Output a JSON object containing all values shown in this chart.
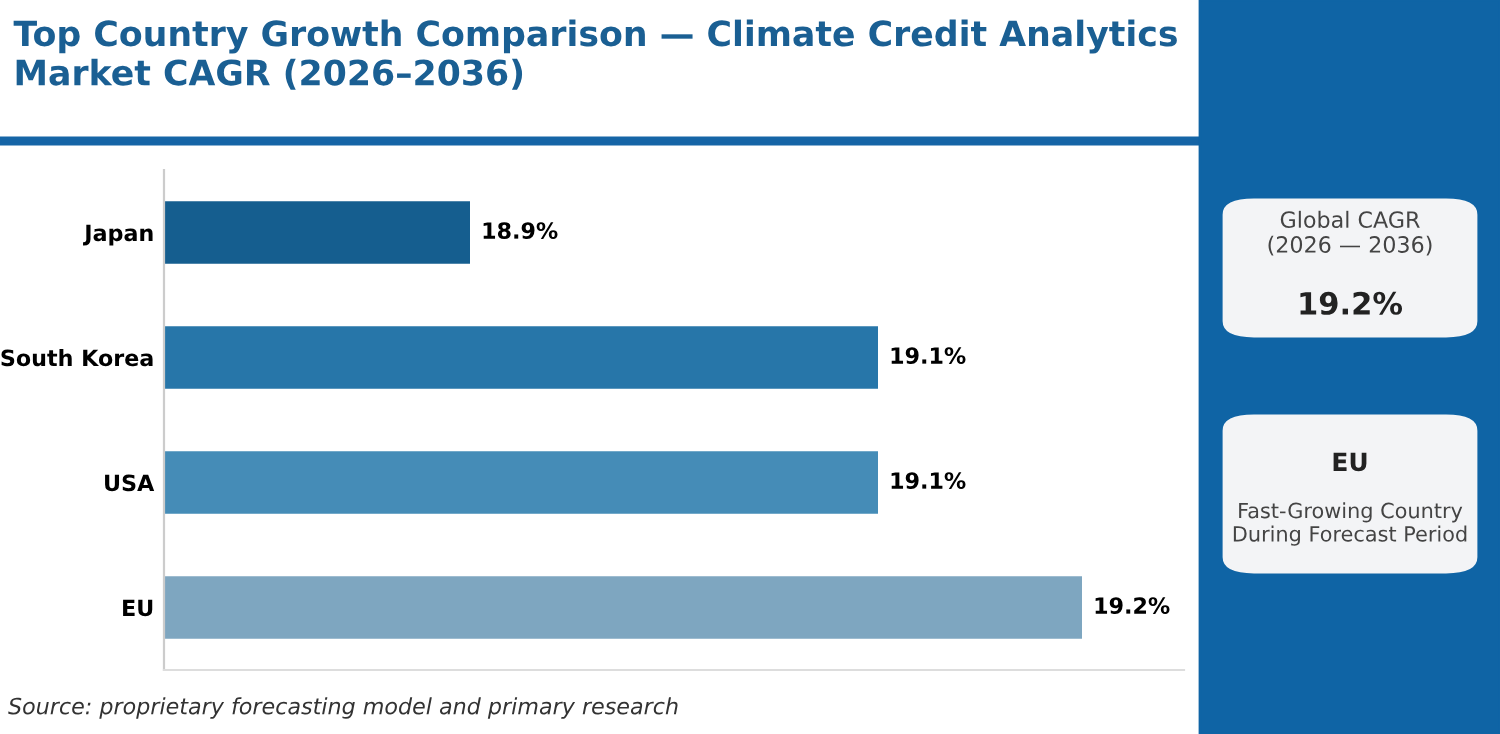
{
  "chart_data": {
    "type": "bar",
    "orientation": "horizontal",
    "title": "Top Country Growth Comparison — Climate Credit Analytics Market CAGR (2026–2036)",
    "categories": [
      "Japan",
      "South Korea",
      "USA",
      "EU"
    ],
    "values": [
      18.9,
      19.1,
      19.1,
      19.2
    ],
    "colors": [
      "#155e8f",
      "#2776a9",
      "#458cb7",
      "#7ea6c0"
    ],
    "value_labels": [
      "18.9%",
      "19.1%",
      "19.1%",
      "19.2%"
    ],
    "xlim": [
      18.75,
      19.25
    ],
    "tick_labels": "y",
    "grid": false,
    "legend": false,
    "annotations": [
      "Global CAGR\n(2026 — 2036)",
      "19.2%",
      "EU",
      "Fast-Growing Country\nDuring Forecast Period",
      "Source: proprietary forecasting model and primary research"
    ]
  }
}
